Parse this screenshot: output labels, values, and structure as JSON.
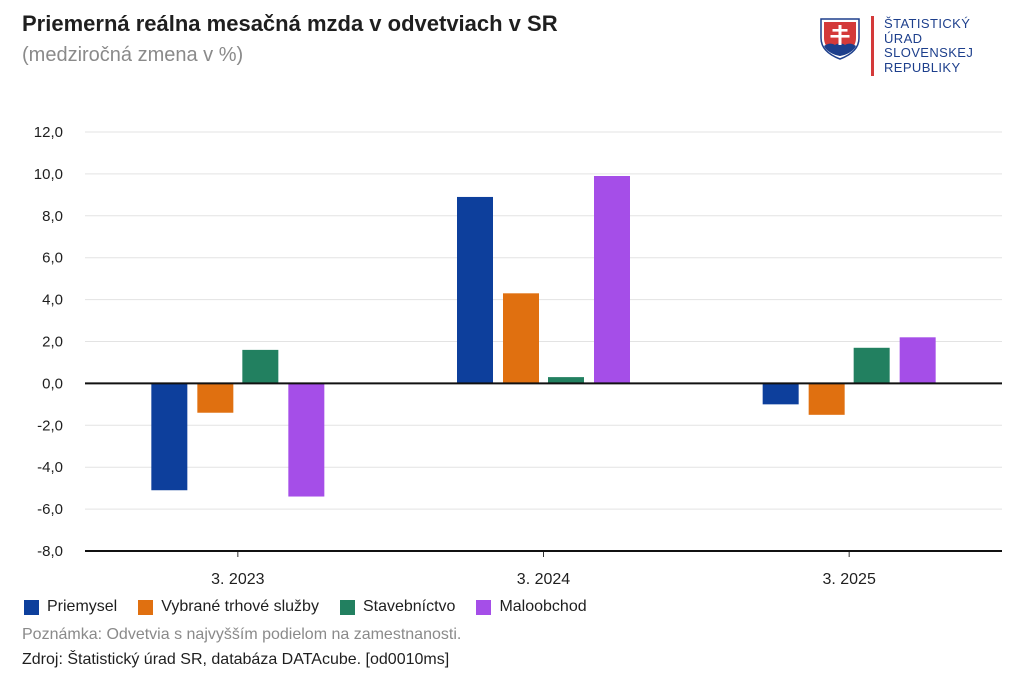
{
  "header": {
    "title": "Priemerná reálna mesačná mzda v odvetviach v SR",
    "subtitle": "(medziročná zmena v %)"
  },
  "logo": {
    "lines": [
      "ŠTATISTICKÝ",
      "ÚRAD",
      "SLOVENSKEJ",
      "REPUBLIKY"
    ],
    "emblem_icon": "slovak-coat-of-arms",
    "colors": {
      "red": "#d43a3a",
      "blue": "#1d3f8c"
    }
  },
  "chart_data": {
    "type": "bar",
    "categories": [
      "3. 2023",
      "3. 2024",
      "3. 2025"
    ],
    "series": [
      {
        "name": "Priemysel",
        "color": "#0d3f9c",
        "values": [
          -5.1,
          8.9,
          -1.0
        ]
      },
      {
        "name": "Vybrané trhové služby",
        "color": "#e07010",
        "values": [
          -1.4,
          4.3,
          -1.5
        ]
      },
      {
        "name": "Stavebníctvo",
        "color": "#228060",
        "values": [
          1.6,
          0.3,
          1.7
        ]
      },
      {
        "name": "Maloobchod",
        "color": "#a54ee8",
        "values": [
          -5.4,
          9.9,
          2.2
        ]
      }
    ],
    "ylim": [
      -8,
      12
    ],
    "yticks": [
      "-8,0",
      "-6,0",
      "-4,0",
      "-2,0",
      "0,0",
      "2,0",
      "4,0",
      "6,0",
      "8,0",
      "10,0",
      "12,0"
    ],
    "ytick_values": [
      -8,
      -6,
      -4,
      -2,
      0,
      2,
      4,
      6,
      8,
      10,
      12
    ],
    "grid": true,
    "legend": "bottom-left"
  },
  "footer": {
    "note": "Poznámka: Odvetvia s najvyšším podielom na zamestnanosti.",
    "source": "Zdroj: Štatistický úrad SR, databáza DATAcube. [od0010ms]"
  }
}
